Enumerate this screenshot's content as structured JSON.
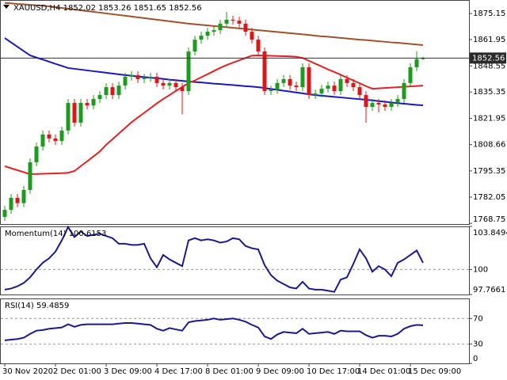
{
  "chart_data": [
    {
      "type": "candlestick",
      "title": "XAUUSD,H4  1852.02 1853.26 1851.65 1852.56",
      "categories": [
        "30 Nov 2020",
        null,
        null,
        null,
        null,
        null,
        null,
        null,
        "2 Dec 01:00",
        null,
        null,
        null,
        null,
        null,
        null,
        null,
        "3 Dec 09:00",
        null,
        null,
        null,
        null,
        null,
        null,
        null,
        "4 Dec 17:00",
        null,
        null,
        null,
        null,
        null,
        null,
        null,
        "8 Dec 01:00",
        null,
        null,
        null,
        null,
        null,
        null,
        null,
        "9 Dec 09:00",
        null,
        null,
        null,
        null,
        null,
        null,
        null,
        "10 Dec 17:00",
        null,
        null,
        null,
        null,
        null,
        null,
        null,
        "14 Dec 01:00",
        null,
        null,
        null,
        null,
        null,
        null,
        null,
        "15 Dec 09:00",
        null,
        null
      ],
      "open": [
        1772.0,
        1775.6,
        1781.7,
        1779.0,
        1785.7,
        1799.7,
        1807.7,
        1813.8,
        1811.8,
        1810.5,
        1815.8,
        1829.8,
        1819.8,
        1829.8,
        1828.5,
        1831.8,
        1833.8,
        1837.8,
        1833.8,
        1838.6,
        1843.1,
        1843.9,
        1841.9,
        1842.5,
        1843.1,
        1839.9,
        1838.6,
        1839.9,
        1837.8,
        1835.8,
        1855.9,
        1861.9,
        1863.9,
        1865.9,
        1866.7,
        1870.0,
        1872.0,
        1871.5,
        1870.0,
        1865.9,
        1861.9,
        1855.9,
        1835.8,
        1836.5,
        1839.9,
        1841.9,
        1838.6,
        1837.8,
        1847.9,
        1833.8,
        1834.6,
        1837.0,
        1838.6,
        1835.8,
        1841.9,
        1839.9,
        1837.8,
        1833.8,
        1827.8,
        1829.8,
        1829.0,
        1827.8,
        1829.8,
        1831.8,
        1839.9,
        1847.9,
        1852.02
      ],
      "high": [
        1777.6,
        1783.7,
        1783.7,
        1787.7,
        1801.7,
        1809.7,
        1815.8,
        1815.8,
        1813.8,
        1817.8,
        1831.8,
        1831.8,
        1831.8,
        1831.8,
        1833.8,
        1835.8,
        1839.8,
        1839.8,
        1840.6,
        1845.1,
        1845.9,
        1845.9,
        1844.5,
        1845.1,
        1845.1,
        1841.9,
        1841.9,
        1841.9,
        1839.8,
        1857.9,
        1863.9,
        1865.9,
        1867.9,
        1868.7,
        1872.0,
        1876.0,
        1874.0,
        1873.5,
        1872.0,
        1867.9,
        1863.9,
        1857.9,
        1838.5,
        1841.9,
        1843.9,
        1843.9,
        1840.6,
        1849.9,
        1849.9,
        1836.6,
        1839.0,
        1840.6,
        1840.6,
        1843.9,
        1843.9,
        1841.9,
        1839.8,
        1835.8,
        1831.8,
        1831.8,
        1831.0,
        1831.8,
        1833.8,
        1841.9,
        1849.9,
        1856.0,
        1853.26
      ],
      "low": [
        1770.0,
        1773.6,
        1777.0,
        1777.0,
        1783.7,
        1797.7,
        1805.7,
        1809.8,
        1808.5,
        1808.5,
        1813.8,
        1817.8,
        1817.8,
        1826.5,
        1826.5,
        1829.8,
        1831.8,
        1831.8,
        1831.8,
        1836.6,
        1841.1,
        1839.9,
        1839.9,
        1840.5,
        1837.9,
        1836.6,
        1836.6,
        1835.8,
        1824.0,
        1833.8,
        1853.9,
        1859.9,
        1861.9,
        1863.9,
        1864.7,
        1868.0,
        1869.5,
        1868.0,
        1863.9,
        1859.9,
        1853.9,
        1833.8,
        1833.8,
        1834.5,
        1837.9,
        1836.6,
        1835.8,
        1835.8,
        1831.8,
        1831.8,
        1832.6,
        1835.0,
        1833.8,
        1833.8,
        1837.9,
        1835.8,
        1831.8,
        1819.8,
        1825.8,
        1825.0,
        1825.8,
        1825.8,
        1827.8,
        1829.8,
        1837.9,
        1845.9,
        1851.65
      ],
      "close": [
        1775.6,
        1781.7,
        1779.0,
        1785.7,
        1799.7,
        1807.7,
        1813.8,
        1811.8,
        1810.5,
        1815.8,
        1829.8,
        1819.8,
        1829.8,
        1828.5,
        1831.8,
        1833.8,
        1837.8,
        1833.8,
        1838.6,
        1843.1,
        1843.9,
        1841.9,
        1842.5,
        1843.1,
        1839.9,
        1838.6,
        1839.9,
        1837.8,
        1835.8,
        1855.9,
        1861.9,
        1863.9,
        1865.9,
        1866.7,
        1870.0,
        1872.0,
        1871.5,
        1870.0,
        1865.9,
        1861.9,
        1855.9,
        1835.8,
        1836.5,
        1839.9,
        1841.9,
        1838.6,
        1837.8,
        1847.9,
        1833.8,
        1834.6,
        1837.0,
        1838.6,
        1835.8,
        1841.9,
        1839.9,
        1837.8,
        1833.8,
        1827.8,
        1829.8,
        1829.0,
        1827.8,
        1829.8,
        1831.8,
        1839.9,
        1847.9,
        1852.02,
        1852.56
      ],
      "up_color": "#1f9a1f",
      "down_color": "#d81818",
      "overlays": [
        {
          "color": "#a0522d",
          "values": [
            1880.5,
            1880.3,
            1880.0,
            1879.8,
            1879.5,
            1879.3,
            1879.1,
            1878.8,
            1878.4,
            1878.0,
            1877.6,
            1877.2,
            1876.8,
            1876.4,
            1876.0,
            1875.6,
            1875.2,
            1874.8,
            1874.4,
            1874.0,
            1873.6,
            1873.2,
            1872.8,
            1872.4,
            1872.0,
            1871.6,
            1871.2,
            1870.8,
            1870.4,
            1870.0,
            1869.7,
            1869.4,
            1869.1,
            1868.8,
            1868.5,
            1868.2,
            1867.9,
            1867.6,
            1867.3,
            1867.0,
            1866.7,
            1866.4,
            1866.1,
            1865.8,
            1865.5,
            1865.2,
            1864.9,
            1864.6,
            1864.3,
            1863.9,
            1863.6,
            1863.4,
            1863.1,
            1862.8,
            1862.5,
            1862.2,
            1861.9,
            1861.7,
            1861.4,
            1861.1,
            1860.8,
            1860.5,
            1860.3,
            1860.0,
            1859.7,
            1859.4,
            1859.1
          ]
        },
        {
          "color": "#1a1ab8",
          "values": [
            1862.7,
            1860.5,
            1858.3,
            1856.1,
            1853.9,
            1852.8,
            1851.8,
            1850.7,
            1849.6,
            1848.6,
            1847.5,
            1847.1,
            1846.7,
            1846.3,
            1845.9,
            1845.5,
            1845.1,
            1844.7,
            1844.3,
            1843.9,
            1843.6,
            1843.2,
            1842.9,
            1842.6,
            1842.3,
            1842.0,
            1841.6,
            1841.3,
            1841.0,
            1840.7,
            1840.4,
            1840.2,
            1839.9,
            1839.6,
            1839.4,
            1839.1,
            1838.9,
            1838.6,
            1838.3,
            1838.1,
            1837.8,
            1837.4,
            1836.9,
            1836.5,
            1836.0,
            1835.6,
            1835.1,
            1834.7,
            1834.2,
            1833.8,
            1833.5,
            1833.2,
            1832.9,
            1832.6,
            1832.3,
            1832.0,
            1831.7,
            1831.4,
            1831.1,
            1830.7,
            1830.4,
            1830.0,
            1829.7,
            1829.4,
            1829.1,
            1828.8,
            1828.6
          ]
        },
        {
          "color": "#e02424",
          "values": [
            1797.7,
            1796.7,
            1795.7,
            1794.7,
            1793.7,
            1793.8,
            1793.9,
            1794.0,
            1794.1,
            1794.2,
            1794.4,
            1795.3,
            1797.8,
            1800.2,
            1802.7,
            1805.2,
            1808.6,
            1811.4,
            1814.3,
            1817.1,
            1820.0,
            1822.4,
            1824.8,
            1827.2,
            1829.6,
            1831.8,
            1833.8,
            1835.9,
            1837.9,
            1839.9,
            1841.2,
            1842.8,
            1844.4,
            1846.0,
            1847.6,
            1849.0,
            1850.2,
            1851.4,
            1852.6,
            1853.8,
            1853.9,
            1853.8,
            1853.7,
            1853.6,
            1853.5,
            1853.4,
            1853.2,
            1852.6,
            1851.2,
            1849.7,
            1848.3,
            1846.8,
            1845.5,
            1844.1,
            1842.6,
            1841.2,
            1839.8,
            1838.3,
            1837.0,
            1837.2,
            1837.4,
            1837.6,
            1837.8,
            1838.0,
            1838.2,
            1838.4,
            1838.6
          ]
        }
      ],
      "ylim": [
        1768.4,
        1882.0
      ],
      "yticks": [
        1768.75,
        1782.05,
        1795.35,
        1808.66,
        1821.95,
        1835.35,
        1848.55,
        1861.95,
        1875.15
      ]
    },
    {
      "type": "line",
      "title": "Momentum(14) 100.6153",
      "color": "#1a1a8c",
      "values": [
        98.2,
        98.3,
        98.5,
        98.8,
        99.3,
        100.0,
        100.6,
        101.0,
        101.6,
        102.6,
        103.8,
        102.9,
        103.4,
        103.0,
        103.1,
        103.2,
        103.0,
        102.8,
        102.3,
        102.3,
        102.2,
        102.2,
        102.3,
        101.0,
        100.2,
        101.3,
        100.9,
        100.6,
        100.3,
        102.6,
        102.8,
        102.6,
        102.7,
        102.6,
        102.4,
        102.5,
        102.8,
        102.7,
        102.1,
        101.9,
        101.8,
        100.4,
        99.5,
        99.0,
        98.7,
        98.4,
        98.3,
        98.9,
        98.3,
        98.2,
        98.2,
        98.1,
        98.0,
        99.1,
        99.3,
        100.5,
        101.8,
        101.0,
        99.8,
        100.3,
        100.0,
        99.4,
        100.6,
        100.9,
        101.3,
        101.7,
        100.6
      ],
      "ylim": [
        97.7661,
        103.8494
      ],
      "yticks": [
        97.7661,
        100,
        103.8494
      ],
      "levels": [
        100
      ]
    },
    {
      "type": "line",
      "title": "RSI(14) 59.4859",
      "color": "#1a1a8c",
      "values": [
        36,
        37,
        38,
        40,
        46,
        51,
        52,
        54,
        55,
        56,
        61,
        57,
        60,
        61,
        61,
        61,
        61,
        61,
        62,
        63,
        63,
        62,
        61,
        60,
        54,
        51,
        55,
        53,
        51,
        64,
        66,
        67,
        68,
        70,
        68,
        69,
        70,
        68,
        65,
        60,
        56,
        42,
        38,
        45,
        49,
        48,
        47,
        54,
        46,
        47,
        48,
        49,
        46,
        51,
        50,
        50,
        50,
        44,
        40,
        43,
        43,
        42,
        46,
        54,
        58,
        60,
        59.4859
      ],
      "ylim": [
        0,
        100
      ],
      "yticks": [
        0,
        30,
        70
      ],
      "levels": [
        30,
        70
      ]
    }
  ]
}
